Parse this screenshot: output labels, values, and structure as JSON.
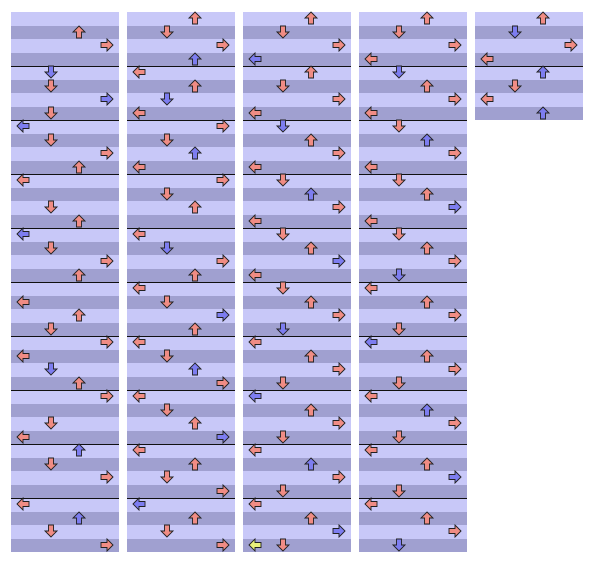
{
  "chart": {
    "type": "step-chart",
    "lanes": [
      "left",
      "down",
      "up",
      "right"
    ],
    "measure_count": 18,
    "beats_per_measure": 4,
    "measures_per_column": 10,
    "columns_used": 5,
    "colors": {
      "band_light": "#c8c8f8",
      "band_dark": "#a0a0d0",
      "measure_line": "#101010",
      "quarter_note": "#f08c84",
      "eighth_note": "#7d7df0",
      "freeze_head": "#e8f07a",
      "arrow_outline": "#202020"
    },
    "note_types": {
      "4": "quarter-note-arrow",
      "8": "eighth-note-arrow",
      "F": "freeze-arrow"
    }
  },
  "measures": [
    {
      "rows": [
        "",
        "",
        "",
        "",
        "",
        "",
        "",
        "",
        "",
        "",
        "",
        ""
      ]
    },
    {
      "rows": [
        "",
        "",
        "",
        "",
        "",
        "",
        "",
        "",
        "",
        "",
        "",
        ""
      ]
    },
    {
      "rows": [
        "0000",
        "0010",
        "4000",
        "",
        "0200",
        "",
        "0024",
        "",
        "2000",
        "",
        "0004",
        ""
      ]
    },
    {
      "rows": [
        "0400",
        "2200",
        "",
        "4200",
        "0400",
        "",
        "2000",
        "",
        "",
        "",
        "",
        ""
      ]
    },
    {
      "rows": [
        "",
        "0240",
        "2000",
        "",
        "0420",
        "",
        "2000",
        "",
        "0400",
        "0024",
        "",
        ""
      ]
    },
    {
      "rows": [
        "",
        "0400",
        "",
        "0420",
        "",
        "0004",
        "2000",
        "",
        "",
        "",
        "",
        ""
      ]
    },
    {
      "rows": [
        "0020",
        "",
        "4400",
        "",
        "0440",
        "",
        "0004",
        "",
        "",
        "",
        "",
        ""
      ]
    },
    {
      "rows": [
        "0400",
        "",
        "0020",
        "",
        "0420",
        "",
        "0400",
        "",
        "2000",
        "",
        "",
        ""
      ]
    },
    {
      "rows": [
        "",
        "",
        "2000",
        "0400",
        "",
        "0420",
        "",
        "",
        "2004",
        "",
        "0400",
        ""
      ]
    },
    {
      "rows": [
        "",
        "0400",
        "",
        "4000",
        "",
        "0020",
        "",
        "",
        "0004",
        "",
        "",
        ""
      ]
    },
    {
      "rows": [
        "",
        "",
        "",
        "",
        "",
        "",
        "",
        "",
        "",
        "",
        "",
        ""
      ]
    },
    {
      "rows": [
        "",
        "",
        "",
        "",
        "",
        "",
        "",
        "",
        "",
        "",
        "",
        ""
      ]
    },
    {
      "rows": [
        "",
        "",
        "",
        "",
        "",
        "",
        "",
        "",
        "",
        "",
        "",
        ""
      ]
    },
    {
      "rows": [
        "",
        "",
        "",
        "",
        "",
        "",
        "",
        "",
        "",
        "",
        "",
        ""
      ]
    },
    {
      "rows": [
        "",
        "",
        "",
        "",
        "",
        "",
        "",
        "",
        "",
        "",
        "",
        ""
      ]
    },
    {
      "rows": [
        "",
        "",
        "",
        "",
        "",
        "",
        "",
        "",
        "",
        "",
        "",
        ""
      ]
    },
    {
      "rows": [
        "",
        "",
        "",
        "",
        "",
        "",
        "",
        "",
        "",
        "",
        "",
        ""
      ]
    },
    {
      "rows": [
        "",
        "",
        "",
        "",
        "",
        "",
        "",
        "",
        "",
        "",
        "",
        ""
      ]
    }
  ],
  "notes": [
    [
      0,
      0,
      0,
      1,
      4
    ],
    [
      0,
      0,
      1,
      0,
      4
    ],
    [
      0,
      0,
      2,
      3,
      4
    ],
    [
      0,
      0,
      4,
      1,
      4
    ],
    [
      0,
      0,
      5,
      2,
      4
    ],
    [
      0,
      0,
      6,
      0,
      4
    ],
    [
      0,
      0,
      7,
      1,
      4
    ],
    [
      0,
      0,
      8,
      0,
      4
    ],
    [
      0,
      0,
      8,
      2,
      4
    ],
    [
      0,
      0,
      9,
      1,
      4
    ],
    [
      0,
      0,
      10,
      3,
      4
    ],
    [
      0,
      0,
      11,
      0,
      4
    ],
    [
      0,
      0,
      12,
      1,
      4
    ],
    [
      0,
      0,
      13,
      2,
      4
    ],
    [
      0,
      0,
      14,
      1,
      4
    ],
    [
      0,
      0,
      15,
      0,
      4
    ],
    [
      0,
      0,
      16,
      3,
      4
    ],
    [
      0,
      0,
      17,
      1,
      4
    ],
    [
      0,
      0,
      18,
      2,
      8
    ],
    [
      0,
      0,
      19,
      3,
      4
    ],
    [
      0,
      0,
      20,
      1,
      4
    ],
    [
      0,
      0,
      21,
      2,
      8
    ],
    [
      0,
      0,
      22,
      0,
      4
    ],
    [
      0,
      0,
      23,
      3,
      4
    ],
    [
      0,
      0,
      24,
      2,
      4
    ],
    [
      0,
      0,
      25,
      1,
      8
    ],
    [
      0,
      0,
      26,
      0,
      4
    ],
    [
      0,
      0,
      27,
      2,
      4
    ],
    [
      0,
      0,
      28,
      3,
      4
    ],
    [
      0,
      0,
      29,
      1,
      4
    ],
    [
      0,
      0,
      30,
      2,
      8
    ],
    [
      0,
      0,
      31,
      0,
      4
    ],
    [
      0,
      0,
      32,
      1,
      4
    ],
    [
      0,
      0,
      33,
      2,
      4
    ],
    [
      0,
      0,
      34,
      0,
      4
    ],
    [
      0,
      0,
      35,
      3,
      4
    ],
    [
      0,
      0,
      36,
      2,
      4
    ],
    [
      0,
      0,
      37,
      1,
      4
    ],
    [
      0,
      0,
      38,
      3,
      4
    ],
    [
      0,
      0,
      39,
      0,
      4
    ],
    [
      0,
      0,
      40,
      1,
      8
    ],
    [
      0,
      0,
      41,
      2,
      4
    ],
    [
      0,
      0,
      42,
      0,
      4
    ],
    [
      0,
      0,
      43,
      3,
      4
    ],
    [
      0,
      0,
      44,
      1,
      4
    ],
    [
      0,
      0,
      45,
      2,
      8
    ],
    [
      0,
      0,
      46,
      0,
      4
    ],
    [
      0,
      0,
      47,
      1,
      4
    ],
    [
      0,
      0,
      48,
      2,
      4
    ],
    [
      0,
      0,
      49,
      3,
      4
    ],
    [
      0,
      0,
      50,
      1,
      4
    ],
    [
      0,
      0,
      51,
      0,
      4
    ],
    [
      0,
      0,
      52,
      2,
      4
    ],
    [
      0,
      0,
      53,
      3,
      8
    ],
    [
      0,
      0,
      54,
      1,
      4
    ],
    [
      0,
      0,
      55,
      0,
      4
    ],
    [
      0,
      0,
      56,
      2,
      4
    ],
    [
      0,
      0,
      57,
      1,
      4
    ],
    [
      0,
      0,
      58,
      3,
      4
    ],
    [
      0,
      0,
      59,
      0,
      4
    ],
    [
      0,
      0,
      60,
      1,
      4
    ],
    [
      0,
      0,
      61,
      2,
      8
    ],
    [
      0,
      0,
      62,
      3,
      4
    ],
    [
      0,
      0,
      63,
      0,
      4
    ],
    [
      0,
      0,
      64,
      1,
      4
    ],
    [
      0,
      0,
      65,
      2,
      4
    ],
    [
      0,
      0,
      66,
      3,
      4
    ],
    [
      0,
      0,
      67,
      1,
      8
    ],
    [
      0,
      0,
      68,
      0,
      4
    ],
    [
      0,
      0,
      69,
      2,
      4
    ],
    [
      0,
      0,
      70,
      3,
      4
    ],
    [
      0,
      0,
      71,
      1,
      4
    ],
    [
      0,
      0,
      72,
      0,
      4
    ],
    [
      0,
      0,
      73,
      2,
      8
    ],
    [
      0,
      0,
      74,
      3,
      4
    ],
    [
      0,
      0,
      75,
      1,
      4
    ],
    [
      0,
      0,
      76,
      0,
      4
    ],
    [
      0,
      0,
      77,
      2,
      4
    ],
    [
      0,
      0,
      78,
      3,
      4
    ],
    [
      0,
      0,
      79,
      1,
      8
    ],
    [
      0,
      0,
      80,
      0,
      4
    ],
    [
      0,
      0,
      81,
      2,
      4
    ],
    [
      0,
      0,
      82,
      3,
      4
    ],
    [
      0,
      0,
      83,
      1,
      4
    ],
    [
      0,
      0,
      84,
      0,
      4
    ],
    [
      0,
      0,
      85,
      2,
      8
    ],
    [
      0,
      0,
      86,
      3,
      4
    ],
    [
      0,
      0,
      87,
      1,
      4
    ],
    [
      0,
      0,
      88,
      0,
      4
    ],
    [
      0,
      0,
      89,
      2,
      4
    ],
    [
      0,
      0,
      90,
      3,
      4
    ],
    [
      0,
      0,
      91,
      1,
      8
    ],
    [
      0,
      0,
      92,
      0,
      4
    ],
    [
      0,
      0,
      93,
      2,
      4
    ],
    [
      0,
      0,
      94,
      3,
      4
    ],
    [
      0,
      0,
      95,
      1,
      4
    ],
    [
      0,
      0,
      96,
      0,
      4
    ],
    [
      0,
      0,
      97,
      2,
      8
    ],
    [
      0,
      0,
      98,
      3,
      4
    ],
    [
      0,
      0,
      99,
      1,
      4
    ],
    [
      0,
      0,
      100,
      0,
      4
    ],
    [
      0,
      0,
      101,
      2,
      4
    ],
    [
      0,
      0,
      102,
      3,
      4
    ],
    [
      0,
      0,
      103,
      1,
      8
    ],
    [
      0,
      0,
      104,
      0,
      4
    ],
    [
      0,
      0,
      105,
      2,
      4
    ],
    [
      0,
      0,
      106,
      3,
      4
    ],
    [
      0,
      0,
      107,
      1,
      4
    ],
    [
      0,
      0,
      108,
      0,
      4
    ],
    [
      0,
      0,
      109,
      2,
      8
    ],
    [
      0,
      0,
      110,
      3,
      4
    ],
    [
      0,
      0,
      111,
      1,
      4
    ],
    [
      0,
      0,
      112,
      0,
      4
    ],
    [
      0,
      0,
      113,
      2,
      4
    ],
    [
      0,
      0,
      114,
      3,
      4
    ],
    [
      0,
      0,
      115,
      1,
      8
    ],
    [
      0,
      0,
      116,
      0,
      4
    ],
    [
      0,
      0,
      117,
      2,
      4
    ],
    [
      0,
      0,
      118,
      3,
      4
    ],
    [
      0,
      0,
      119,
      1,
      4
    ],
    [
      0,
      0,
      120,
      0,
      4
    ],
    [
      0,
      0,
      121,
      2,
      8
    ],
    [
      0,
      0,
      122,
      3,
      4
    ],
    [
      0,
      0,
      123,
      1,
      4
    ],
    [
      0,
      0,
      124,
      0,
      4
    ],
    [
      0,
      0,
      125,
      2,
      4
    ],
    [
      0,
      0,
      126,
      3,
      4
    ],
    [
      0,
      0,
      127,
      1,
      8
    ],
    [
      0,
      0,
      128,
      0,
      4
    ],
    [
      0,
      0,
      129,
      2,
      4
    ],
    [
      0,
      0,
      130,
      3,
      4
    ],
    [
      0,
      0,
      131,
      1,
      4
    ],
    [
      0,
      0,
      132,
      0,
      4
    ],
    [
      0,
      0,
      133,
      2,
      8
    ],
    [
      0,
      0,
      134,
      3,
      4
    ],
    [
      0,
      0,
      135,
      1,
      4
    ],
    [
      0,
      0,
      136,
      0,
      4
    ],
    [
      0,
      0,
      137,
      2,
      4
    ],
    [
      0,
      0,
      138,
      3,
      4
    ],
    [
      0,
      0,
      139,
      1,
      8
    ],
    [
      0,
      0,
      140,
      0,
      4
    ],
    [
      0,
      0,
      141,
      2,
      4
    ],
    [
      0,
      0,
      142,
      3,
      4
    ],
    [
      0,
      0,
      143,
      1,
      4
    ],
    [
      0,
      0,
      144,
      0,
      4
    ],
    [
      0,
      0,
      145,
      2,
      8
    ],
    [
      0,
      0,
      146,
      3,
      4
    ],
    [
      0,
      0,
      147,
      1,
      4
    ],
    [
      0,
      0,
      148,
      0,
      4
    ],
    [
      0,
      0,
      149,
      2,
      4
    ],
    [
      0,
      0,
      150,
      3,
      4
    ],
    [
      0,
      0,
      151,
      1,
      8
    ],
    [
      0,
      0,
      152,
      0,
      4
    ],
    [
      0,
      0,
      153,
      2,
      4
    ],
    [
      0,
      0,
      154,
      3,
      4
    ],
    [
      0,
      0,
      155,
      1,
      4
    ],
    [
      0,
      0,
      156,
      0,
      4
    ],
    [
      0,
      0,
      157,
      2,
      8
    ],
    [
      0,
      0,
      158,
      3,
      4
    ],
    [
      0,
      0,
      159,
      1,
      4
    ]
  ],
  "freeze": {
    "lane": 0,
    "column": 2,
    "row": 39
  }
}
